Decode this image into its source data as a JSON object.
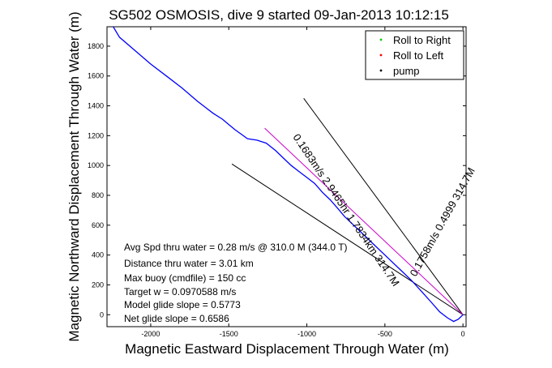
{
  "chart_data": {
    "type": "line",
    "title": "SG502 OSMOSIS, dive 9 started 09-Jan-2013 10:12:15",
    "xlabel": "Magnetic Eastward Displacement Through Water (m)",
    "ylabel": "Magnetic Northward Displacement Through Water (m)",
    "xlim": [
      -2280,
      20
    ],
    "ylim": [
      -80,
      1930
    ],
    "xticks": [
      -2000,
      -1500,
      -1000,
      -500,
      0
    ],
    "yticks": [
      0,
      200,
      400,
      600,
      800,
      1000,
      1200,
      1400,
      1600,
      1800
    ],
    "grid": false,
    "legend": {
      "position": "top-right",
      "entries": [
        {
          "label": "Roll to Right",
          "color": "#00cc00"
        },
        {
          "label": "Roll to Left",
          "color": "#ff0000"
        },
        {
          "label": "pump",
          "color": "#000000"
        }
      ]
    },
    "series": [
      {
        "color": "#0000ff",
        "x": [
          0,
          -30,
          -60,
          -100,
          -150,
          -200,
          -260,
          -330,
          -400,
          -480,
          -560,
          -640,
          -700,
          -760,
          -800,
          -850,
          -900,
          -950,
          -1000,
          -1050,
          -1100,
          -1150,
          -1200,
          -1260,
          -1320,
          -1380,
          -1420,
          -1460,
          -1500,
          -1540,
          -1600,
          -1700,
          -1800,
          -1900,
          -2000,
          -2100,
          -2200,
          -2240
        ],
        "y": [
          0,
          -30,
          -45,
          -20,
          20,
          80,
          150,
          230,
          300,
          380,
          460,
          540,
          600,
          660,
          710,
          770,
          820,
          880,
          920,
          960,
          1000,
          1050,
          1100,
          1150,
          1170,
          1180,
          1210,
          1240,
          1275,
          1310,
          1350,
          1430,
          1520,
          1600,
          1680,
          1770,
          1860,
          1930
        ]
      }
    ],
    "reference_lines": [
      {
        "color": "#000000",
        "x": [
          0,
          -1480
        ],
        "y": [
          0,
          1010
        ]
      },
      {
        "color": "#000000",
        "x": [
          0,
          -1020
        ],
        "y": [
          0,
          1450
        ]
      },
      {
        "color": "#cc00cc",
        "x": [
          0,
          -1270
        ],
        "y": [
          0,
          1250
        ]
      }
    ],
    "line_labels": [
      "0.1683m/s 2.9465hr 1.7834km 314.7M",
      "0.1758m/s 0.4999 314.7M"
    ],
    "annotations": [
      "Avg Spd thru water =  0.28 m/s @ 310.0    M (344.0  T)",
      "Distance thru water =  3.01 km",
      "Max buoy (cmdfile) = 150 cc",
      "Target w = 0.0970588 m/s",
      "Model glide slope = 0.5773",
      "Net glide slope = 0.6586"
    ]
  }
}
